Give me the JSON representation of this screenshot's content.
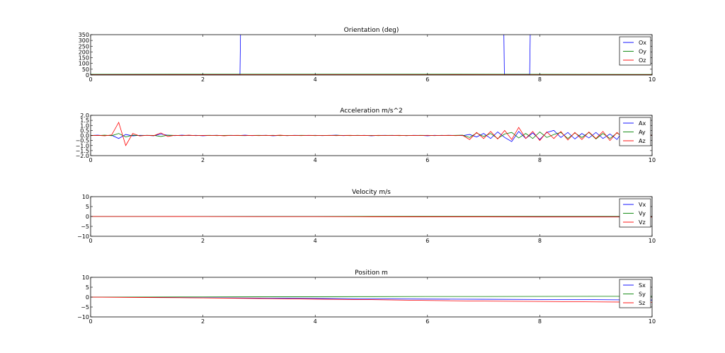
{
  "chart_data": [
    {
      "type": "line",
      "title": "Orientation (deg)",
      "xlim": [
        0,
        10
      ],
      "ylim": [
        0,
        350
      ],
      "xticks": [
        "0",
        "2",
        "4",
        "6",
        "8",
        "10"
      ],
      "yticks": [
        "0",
        "50",
        "100",
        "150",
        "200",
        "250",
        "300",
        "350"
      ],
      "ytick_values": [
        0,
        50,
        100,
        150,
        200,
        250,
        300,
        350
      ],
      "legend": "top-right",
      "series": [
        {
          "name": "Ox",
          "color": "#0000ff",
          "x": [
            0,
            2.66,
            2.67,
            7.36,
            7.37,
            7.82,
            7.83,
            10
          ],
          "y": [
            4,
            5,
            358,
            358,
            5,
            5,
            358,
            358
          ]
        },
        {
          "name": "Oy",
          "color": "#008000",
          "x": [
            0,
            2.67,
            5,
            8,
            10
          ],
          "y": [
            6,
            7,
            7,
            6,
            5
          ]
        },
        {
          "name": "Oz",
          "color": "#ff0000",
          "x": [
            0,
            2.67,
            5,
            8,
            10
          ],
          "y": [
            2,
            3,
            3,
            2,
            2
          ]
        }
      ]
    },
    {
      "type": "line",
      "title": "Acceleration m/s^2",
      "xlim": [
        0,
        10
      ],
      "ylim": [
        -2,
        2
      ],
      "xticks": [
        "0",
        "2",
        "4",
        "6",
        "8",
        "10"
      ],
      "yticks": [
        "−2.0",
        "−1.5",
        "−1.0",
        "−0.5",
        "0.0",
        "0.5",
        "1.0",
        "1.5",
        "2.0"
      ],
      "ytick_values": [
        -2,
        -1.5,
        -1,
        -0.5,
        0,
        0.5,
        1,
        1.5,
        2
      ],
      "legend": "top-right",
      "series": [
        {
          "name": "Ax",
          "color": "#0000ff",
          "y": [
            0,
            0.03,
            -0.02,
            0.02,
            -0.3,
            0.1,
            -0.04,
            0.02,
            0.01,
            -0.03,
            0.15,
            0.02,
            -0.02,
            0.03,
            -0.01,
            0.02,
            -0.03,
            0.01,
            0.02,
            -0.02,
            0.01,
            -0.01,
            0.03,
            -0.02,
            0.01,
            0.02,
            -0.03,
            0.01,
            -0.02,
            0.02,
            0.01,
            -0.01,
            0.02,
            -0.02,
            0.01,
            0.03,
            -0.02,
            0.01,
            -0.01,
            0.02,
            -0.03,
            0.01,
            0.02,
            -0.01,
            0.01,
            -0.02,
            0.02,
            0.01,
            -0.03,
            0.02,
            -0.01,
            0.02,
            0.01,
            -0.02,
            0.1,
            -0.15,
            0.2,
            -0.3,
            0.35,
            -0.2,
            -0.6,
            0.4,
            -0.3,
            0.25,
            -0.4,
            0.3,
            0.5,
            -0.2,
            0.3,
            -0.35,
            0.2,
            -0.25,
            0.3,
            -0.3,
            0.15,
            -0.4,
            0.6,
            -0.3,
            0.2,
            -0.1,
            0.05
          ]
        },
        {
          "name": "Ay",
          "color": "#008000",
          "y": [
            0.02,
            -0.01,
            0.03,
            -0.02,
            0.2,
            -0.15,
            0.03,
            -0.02,
            0.02,
            0.01,
            -0.1,
            0.03,
            0.01,
            -0.02,
            0.02,
            -0.01,
            0.01,
            0.02,
            -0.02,
            0.01,
            0.02,
            -0.01,
            -0.02,
            0.01,
            0.02,
            -0.01,
            0.02,
            -0.02,
            0.01,
            -0.01,
            0.02,
            0.01,
            -0.02,
            0.01,
            -0.01,
            0.02,
            0.01,
            -0.02,
            0.02,
            -0.01,
            0.01,
            -0.02,
            0.01,
            0.02,
            -0.02,
            0.01,
            -0.01,
            0.02,
            0.01,
            -0.02,
            0.02,
            -0.01,
            0.02,
            0.03,
            -0.2,
            0.25,
            -0.1,
            0.2,
            -0.3,
            0.15,
            0.3,
            -0.25,
            0.2,
            -0.3,
            0.35,
            -0.2,
            0.1,
            0.3,
            -0.3,
            0.25,
            -0.2,
            0.3,
            -0.35,
            0.2,
            -0.3,
            0.25,
            -0.2,
            0.3,
            -0.15,
            0.1,
            0.02
          ]
        },
        {
          "name": "Az",
          "color": "#ff0000",
          "y": [
            -0.02,
            0.01,
            -0.03,
            0.05,
            1.3,
            -1.0,
            0.2,
            -0.05,
            0.02,
            -0.02,
            0.25,
            -0.1,
            0.02,
            -0.01,
            0.03,
            -0.02,
            0.01,
            -0.01,
            0.02,
            -0.03,
            0.01,
            0.02,
            -0.01,
            0.01,
            -0.02,
            0.02,
            -0.01,
            0.03,
            -0.02,
            0.01,
            -0.02,
            0.02,
            0.01,
            -0.01,
            0.02,
            -0.02,
            0.01,
            0.02,
            -0.01,
            0.01,
            -0.02,
            0.02,
            -0.01,
            0.01,
            0.02,
            -0.02,
            0.01,
            -0.01,
            0.02,
            -0.01,
            0.01,
            0.02,
            -0.02,
            0.01,
            -0.4,
            0.3,
            -0.3,
            0.4,
            -0.35,
            0.5,
            -0.4,
            0.8,
            -0.3,
            0.4,
            -0.5,
            0.35,
            -0.3,
            0.4,
            -0.45,
            0.3,
            -0.4,
            0.35,
            -0.3,
            0.4,
            -0.5,
            0.3,
            -0.35,
            0.4,
            -0.3,
            0.2,
            0.0
          ]
        }
      ]
    },
    {
      "type": "line",
      "title": "Velocity m/s",
      "xlim": [
        0,
        10
      ],
      "ylim": [
        -10,
        10
      ],
      "xticks": [
        "0",
        "2",
        "4",
        "6",
        "8",
        "10"
      ],
      "yticks": [
        "−10",
        "−5",
        "0",
        "5",
        "10"
      ],
      "ytick_values": [
        -10,
        -5,
        0,
        5,
        10
      ],
      "legend": "top-right",
      "series": [
        {
          "name": "Vx",
          "color": "#0000ff",
          "y": [
            0,
            0,
            0,
            0,
            0,
            -0.05,
            -0.1,
            -0.1,
            -0.15,
            -0.15,
            -0.2
          ]
        },
        {
          "name": "Vy",
          "color": "#008000",
          "y": [
            0,
            0,
            0,
            0,
            0,
            0.02,
            0.03,
            0.04,
            0.05,
            0.05,
            0.05
          ]
        },
        {
          "name": "Vz",
          "color": "#ff0000",
          "y": [
            0,
            0,
            -0.05,
            -0.1,
            -0.1,
            -0.15,
            -0.2,
            -0.2,
            -0.25,
            -0.25,
            -0.3
          ]
        }
      ]
    },
    {
      "type": "line",
      "title": "Position m",
      "xlim": [
        0,
        10
      ],
      "ylim": [
        -10,
        10
      ],
      "xticks": [
        "0",
        "2",
        "4",
        "6",
        "8",
        "10"
      ],
      "yticks": [
        "−10",
        "−5",
        "0",
        "5",
        "10"
      ],
      "ytick_values": [
        -10,
        -5,
        0,
        5,
        10
      ],
      "legend": "top-right",
      "series": [
        {
          "name": "Sx",
          "color": "#0000ff",
          "y": [
            0,
            -0.1,
            -0.3,
            -0.5,
            -0.7,
            -0.9,
            -1.0,
            -1.1,
            -1.2,
            -1.3,
            -1.5
          ]
        },
        {
          "name": "Sy",
          "color": "#008000",
          "y": [
            0,
            0.05,
            0.1,
            0.15,
            0.2,
            0.25,
            0.3,
            0.3,
            0.35,
            0.4,
            0.4
          ]
        },
        {
          "name": "Sz",
          "color": "#ff0000",
          "y": [
            0,
            -0.2,
            -0.4,
            -0.7,
            -1.0,
            -1.3,
            -1.7,
            -2.0,
            -2.2,
            -2.4,
            -2.6
          ]
        }
      ]
    }
  ]
}
